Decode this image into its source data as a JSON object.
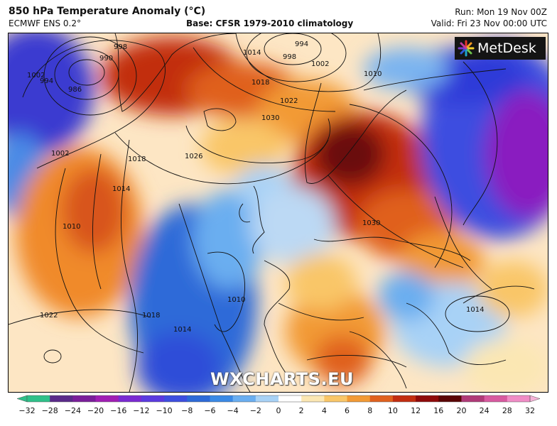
{
  "header": {
    "title": "850 hPa Temperature Anomaly (°C)",
    "model": "ECMWF ENS 0.2°",
    "base": "Base: CFSR 1979-2010 climatology",
    "run": "Run: Mon 19 Nov 00Z",
    "valid": "Valid: Fri 23 Nov 00:00 UTC"
  },
  "branding": {
    "logo_text": "MetDesk",
    "watermark": "WXCHARTS.EU"
  },
  "isobar_labels": [
    {
      "text": "998"
    },
    {
      "text": "990"
    },
    {
      "text": "986"
    },
    {
      "text": "994"
    },
    {
      "text": "1002"
    },
    {
      "text": "1014"
    },
    {
      "text": "998"
    },
    {
      "text": "994"
    },
    {
      "text": "1002"
    },
    {
      "text": "1010"
    },
    {
      "text": "1018"
    },
    {
      "text": "1022"
    },
    {
      "text": "1030"
    },
    {
      "text": "1002"
    },
    {
      "text": "1018"
    },
    {
      "text": "1014"
    },
    {
      "text": "1026"
    },
    {
      "text": "1010"
    },
    {
      "text": "1022"
    },
    {
      "text": "1018"
    },
    {
      "text": "1014"
    },
    {
      "text": "1010"
    },
    {
      "text": "1030"
    },
    {
      "text": "1014"
    }
  ],
  "colorbar": {
    "unit": "°C",
    "ticks": [
      "−32",
      "−28",
      "−24",
      "−20",
      "−16",
      "−12",
      "−10",
      "−8",
      "−6",
      "−4",
      "−2",
      "0",
      "2",
      "4",
      "6",
      "8",
      "10",
      "12",
      "16",
      "20",
      "24",
      "28",
      "32"
    ],
    "colors": [
      "#2ec08a",
      "#5a2a8a",
      "#7a1e9a",
      "#a01eb4",
      "#7a2ad2",
      "#5a3ae0",
      "#3d4ee0",
      "#2d6ad8",
      "#3a8ae6",
      "#6aaef0",
      "#a8d2f6",
      "#ffffff",
      "#fbe7b3",
      "#f9c668",
      "#f29a35",
      "#e0611e",
      "#c22d10",
      "#8e0a0a",
      "#5a0505",
      "#b03a78",
      "#d85aa0",
      "#f08cc6"
    ]
  }
}
